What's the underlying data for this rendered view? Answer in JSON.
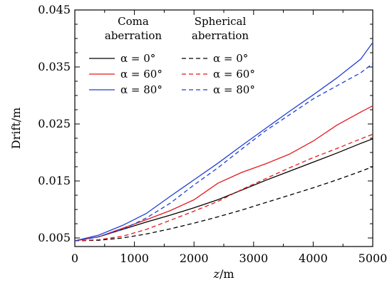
{
  "chart_data": {
    "type": "line",
    "xlabel": "z/m",
    "ylabel": "Drift/m",
    "xlim": [
      0,
      5000
    ],
    "ylim": [
      0.0035,
      0.045
    ],
    "xticks": [
      0,
      1000,
      2000,
      3000,
      4000,
      5000
    ],
    "xtick_labels": [
      "0",
      "1000",
      "2000",
      "3000",
      "4000",
      "5000"
    ],
    "yticks": [
      0.005,
      0.015,
      0.025,
      0.035,
      0.045
    ],
    "ytick_labels": [
      "0.005",
      "0.015",
      "0.025",
      "0.035",
      "0.045"
    ],
    "grid": false,
    "legend": {
      "placement": "top-left",
      "groups": [
        {
          "title_lines": [
            "Coma",
            "aberration"
          ],
          "style": "solid"
        },
        {
          "title_lines": [
            "Spherical",
            "aberration"
          ],
          "style": "dashed"
        }
      ],
      "labels": [
        "α = 0°",
        "α = 60°",
        "α = 80°"
      ]
    },
    "x": [
      0,
      400,
      800,
      1200,
      1600,
      2000,
      2400,
      2800,
      3200,
      3600,
      4000,
      4400,
      4800,
      5000
    ],
    "series": [
      {
        "name": "α = 0°",
        "group": "Coma aberration",
        "dash": "solid",
        "color": "#000000",
        "values": [
          0.0045,
          0.0052,
          0.0065,
          0.0078,
          0.009,
          0.0103,
          0.0117,
          0.0134,
          0.0151,
          0.0167,
          0.0183,
          0.0199,
          0.0216,
          0.0224
        ]
      },
      {
        "name": "α = 60°",
        "group": "Coma aberration",
        "dash": "solid",
        "color": "#e31a1c",
        "values": [
          0.0045,
          0.0052,
          0.0067,
          0.0082,
          0.0098,
          0.0117,
          0.0146,
          0.0165,
          0.018,
          0.0197,
          0.022,
          0.0248,
          0.0271,
          0.0282
        ]
      },
      {
        "name": "α = 80°",
        "group": "Coma aberration",
        "dash": "solid",
        "color": "#1f3fd6",
        "values": [
          0.0045,
          0.0055,
          0.0072,
          0.0093,
          0.0123,
          0.0152,
          0.0181,
          0.0212,
          0.0242,
          0.0272,
          0.0301,
          0.0331,
          0.0364,
          0.0393
        ]
      },
      {
        "name": "α = 0°",
        "group": "Spherical aberration",
        "dash": "dashed",
        "color": "#000000",
        "values": [
          0.0045,
          0.0046,
          0.005,
          0.0057,
          0.0066,
          0.0076,
          0.0087,
          0.0099,
          0.0112,
          0.0125,
          0.0138,
          0.0152,
          0.0167,
          0.0175
        ]
      },
      {
        "name": "α = 60°",
        "group": "Spherical aberration",
        "dash": "dashed",
        "color": "#e31a1c",
        "values": [
          0.0045,
          0.0047,
          0.0053,
          0.0065,
          0.0081,
          0.0097,
          0.0114,
          0.0135,
          0.0154,
          0.0173,
          0.0191,
          0.0207,
          0.0224,
          0.0232
        ]
      },
      {
        "name": "α = 80°",
        "group": "Spherical aberration",
        "dash": "dashed",
        "color": "#1f3fd6",
        "values": [
          0.0045,
          0.0052,
          0.0065,
          0.0085,
          0.0111,
          0.0143,
          0.0173,
          0.0206,
          0.0238,
          0.0266,
          0.0294,
          0.0317,
          0.034,
          0.0356
        ]
      }
    ]
  }
}
